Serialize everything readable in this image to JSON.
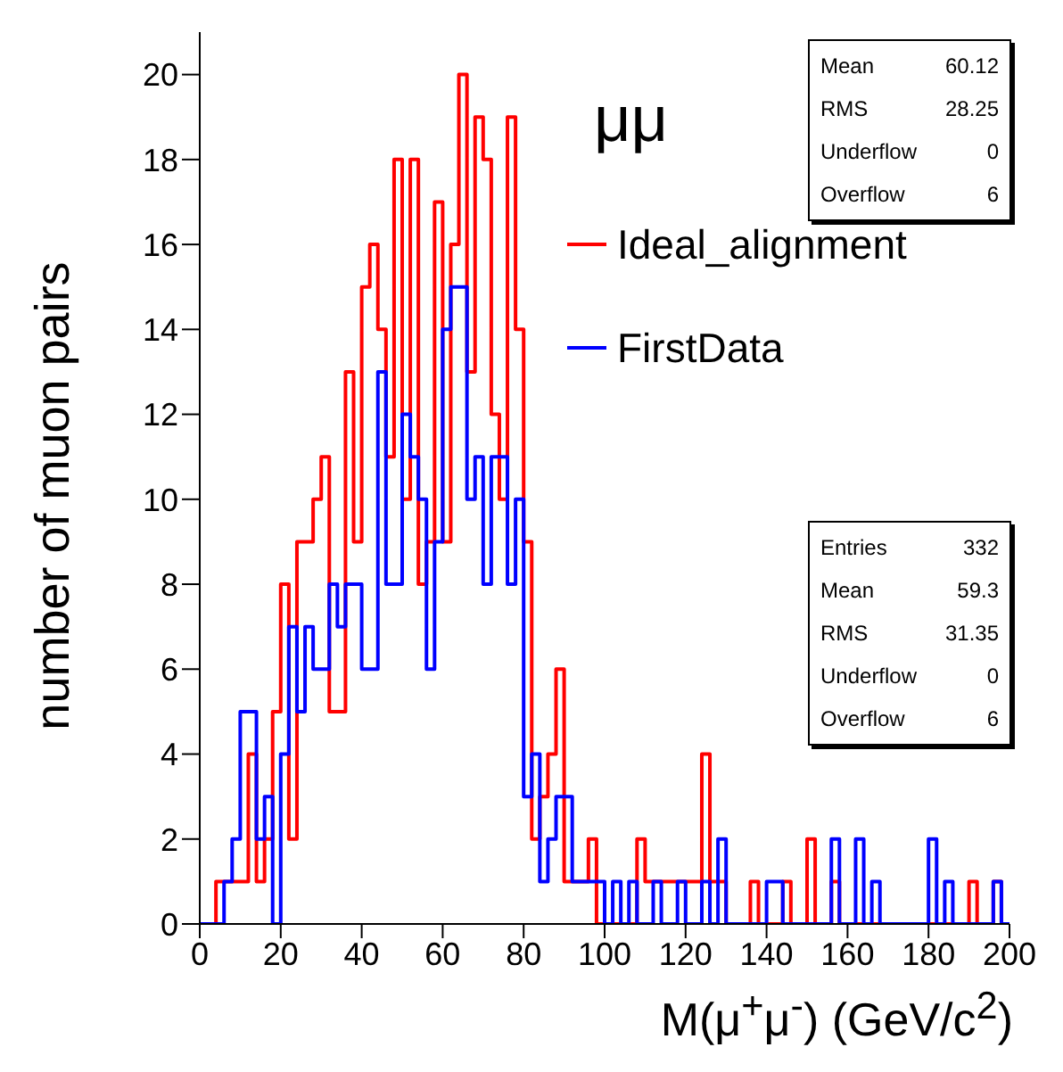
{
  "chart_data": {
    "type": "histogram",
    "xlabel": "M(μ$^{+}$μ$^{-}$) (GeV/c$^{2}$)",
    "ylabel": "number of muon pairs",
    "bins": [
      0,
      2,
      4,
      6,
      8,
      10,
      12,
      14,
      16,
      18,
      20,
      22,
      24,
      26,
      28,
      30,
      32,
      34,
      36,
      38,
      40,
      42,
      44,
      46,
      48,
      50,
      52,
      54,
      56,
      58,
      60,
      62,
      64,
      66,
      68,
      70,
      72,
      74,
      76,
      78,
      80,
      82,
      84,
      86,
      88,
      90,
      92,
      94,
      96,
      98,
      100,
      102,
      104,
      106,
      108,
      110,
      112,
      114,
      116,
      118,
      120,
      122,
      124,
      126,
      128,
      130,
      132,
      134,
      136,
      138,
      140,
      142,
      144,
      146,
      148,
      150,
      152,
      154,
      156,
      158,
      160,
      162,
      164,
      166,
      168,
      170,
      172,
      174,
      176,
      178,
      180,
      182,
      184,
      186,
      188,
      190,
      192,
      194,
      196,
      198,
      200
    ],
    "series": [
      {
        "name": "Ideal_alignment",
        "color": "#ff0000",
        "values": [
          0,
          0,
          1,
          1,
          1,
          1,
          4,
          1,
          2,
          5,
          8,
          2,
          9,
          9,
          10,
          11,
          5,
          5,
          13,
          9,
          15,
          16,
          14,
          11,
          18,
          10,
          18,
          8,
          9,
          17,
          9,
          16,
          20,
          13,
          19,
          18,
          12,
          10,
          19,
          14,
          9,
          2,
          3,
          4,
          6,
          1,
          1,
          1,
          2,
          0,
          0,
          0,
          0,
          0,
          2,
          1,
          1,
          1,
          1,
          1,
          1,
          1,
          4,
          1,
          1,
          0,
          0,
          0,
          1,
          0,
          0,
          0,
          1,
          0,
          0,
          2,
          0,
          0,
          1,
          0,
          0,
          0,
          0,
          0,
          0,
          0,
          0,
          0,
          0,
          0,
          0,
          0,
          0,
          0,
          0,
          1,
          0,
          0,
          1,
          0
        ]
      },
      {
        "name": "FirstData",
        "color": "#0000ff",
        "values": [
          0,
          0,
          0,
          1,
          2,
          5,
          5,
          2,
          3,
          0,
          4,
          7,
          5,
          7,
          6,
          6,
          8,
          7,
          8,
          8,
          6,
          6,
          13,
          8,
          8,
          12,
          11,
          10,
          6,
          9,
          14,
          15,
          15,
          10,
          11,
          8,
          11,
          11,
          8,
          10,
          3,
          4,
          1,
          2,
          3,
          3,
          1,
          1,
          1,
          1,
          0,
          1,
          0,
          1,
          0,
          0,
          1,
          0,
          0,
          1,
          0,
          0,
          1,
          0,
          2,
          0,
          0,
          0,
          0,
          0,
          1,
          1,
          0,
          0,
          0,
          0,
          0,
          0,
          2,
          0,
          0,
          2,
          0,
          1,
          0,
          0,
          0,
          0,
          0,
          0,
          2,
          0,
          1,
          0,
          0,
          0,
          0,
          0,
          1,
          0
        ]
      }
    ],
    "xlim": [
      0,
      200
    ],
    "xticks": [
      0,
      20,
      40,
      60,
      80,
      100,
      120,
      140,
      160,
      180,
      200
    ],
    "ylim": [
      0,
      21
    ],
    "yticks": [
      0,
      2,
      4,
      6,
      8,
      10,
      12,
      14,
      16,
      18,
      20
    ],
    "legend": "top right",
    "annotations": [
      "μμ",
      "Mean 60.12",
      "RMS 28.25",
      "Underflow 0",
      "Overflow 6",
      "Entries 332",
      "Mean 59.3",
      "RMS 31.35",
      "Underflow 0",
      "Overflow 6"
    ]
  }
}
